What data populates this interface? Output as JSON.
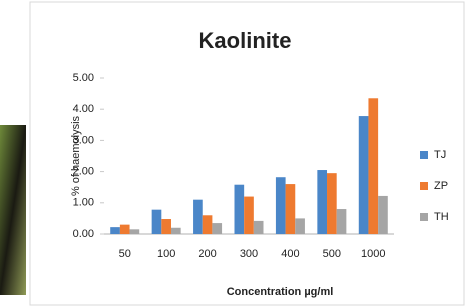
{
  "chart_data": {
    "type": "bar",
    "title": "Kaolinite",
    "x_label": "Concentration µg/ml",
    "y_label": "% of haemolysis",
    "categories": [
      "50",
      "100",
      "200",
      "300",
      "400",
      "500",
      "1000"
    ],
    "series": [
      {
        "name": "TJ",
        "color": "#4a86c8",
        "values": [
          0.22,
          0.78,
          1.1,
          1.58,
          1.82,
          2.05,
          3.78
        ]
      },
      {
        "name": "ZP",
        "color": "#ee7a30",
        "values": [
          0.3,
          0.48,
          0.6,
          1.2,
          1.6,
          1.95,
          4.35
        ]
      },
      {
        "name": "TH",
        "color": "#a5a5a5",
        "values": [
          0.15,
          0.2,
          0.35,
          0.42,
          0.5,
          0.8,
          1.22
        ]
      }
    ],
    "ylim": [
      0,
      5
    ],
    "yticks": [
      {
        "value": 0,
        "label": "0.00"
      },
      {
        "value": 1,
        "label": "1.00"
      },
      {
        "value": 2,
        "label": "2.00"
      },
      {
        "value": 3,
        "label": "3.00"
      },
      {
        "value": 4,
        "label": "4.00"
      },
      {
        "value": 5,
        "label": "5.00"
      }
    ],
    "grid": false,
    "legend": "right"
  }
}
